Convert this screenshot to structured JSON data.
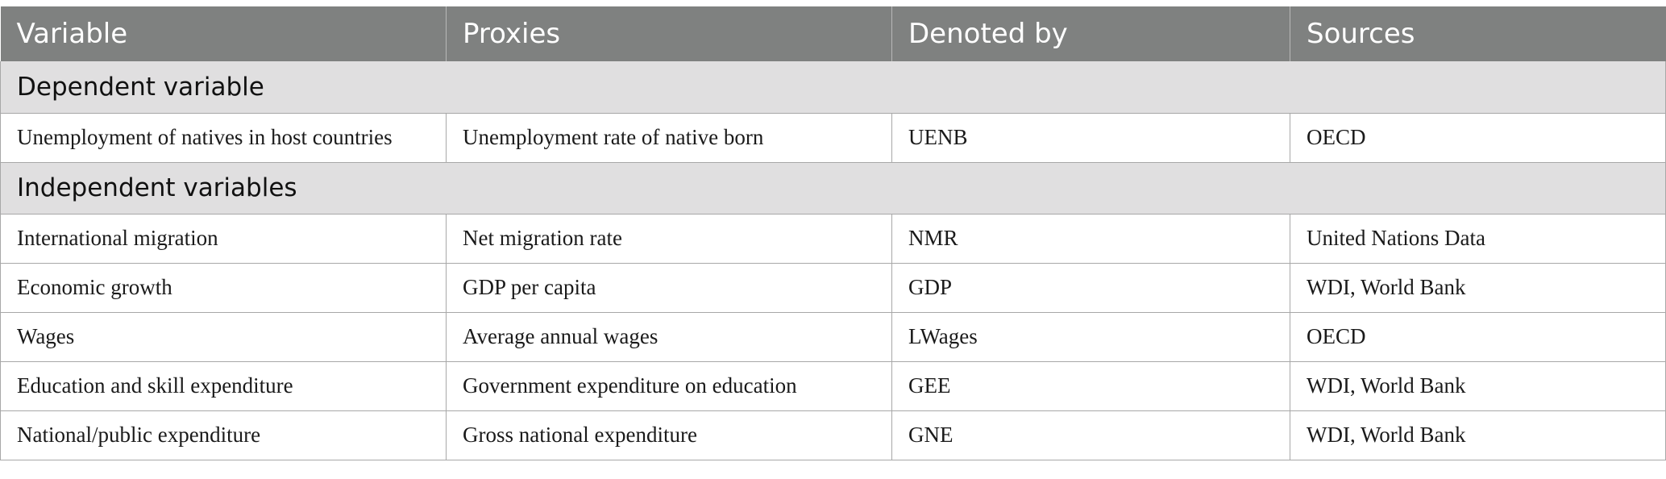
{
  "header": {
    "variable": "Variable",
    "proxies": "Proxies",
    "denoted_by": "Denoted by",
    "sources": "Sources"
  },
  "sections": [
    {
      "title": "Dependent variable",
      "rows": [
        {
          "variable": "Unemployment of natives in host countries",
          "proxies": "Unemployment rate of native born",
          "denoted_by": "UENB",
          "sources": "OECD"
        }
      ]
    },
    {
      "title": "Independent variables",
      "rows": [
        {
          "variable": "International migration",
          "proxies": "Net migration rate",
          "denoted_by": "NMR",
          "sources": "United Nations Data"
        },
        {
          "variable": "Economic growth",
          "proxies": "GDP per capita",
          "denoted_by": "GDP",
          "sources": "WDI, World Bank"
        },
        {
          "variable": "Wages",
          "proxies": "Average annual wages",
          "denoted_by": "LWages",
          "sources": "OECD"
        },
        {
          "variable": "Education and skill expenditure",
          "proxies": "Government expenditure on education",
          "denoted_by": "GEE",
          "sources": "WDI, World Bank"
        },
        {
          "variable": "National/public expenditure",
          "proxies": "Gross national expenditure",
          "denoted_by": "GNE",
          "sources": "WDI, World Bank"
        }
      ]
    }
  ],
  "colors": {
    "header_bg": "#7f8180",
    "section_bg": "#e0dfe0",
    "border": "#a8a8a8"
  }
}
